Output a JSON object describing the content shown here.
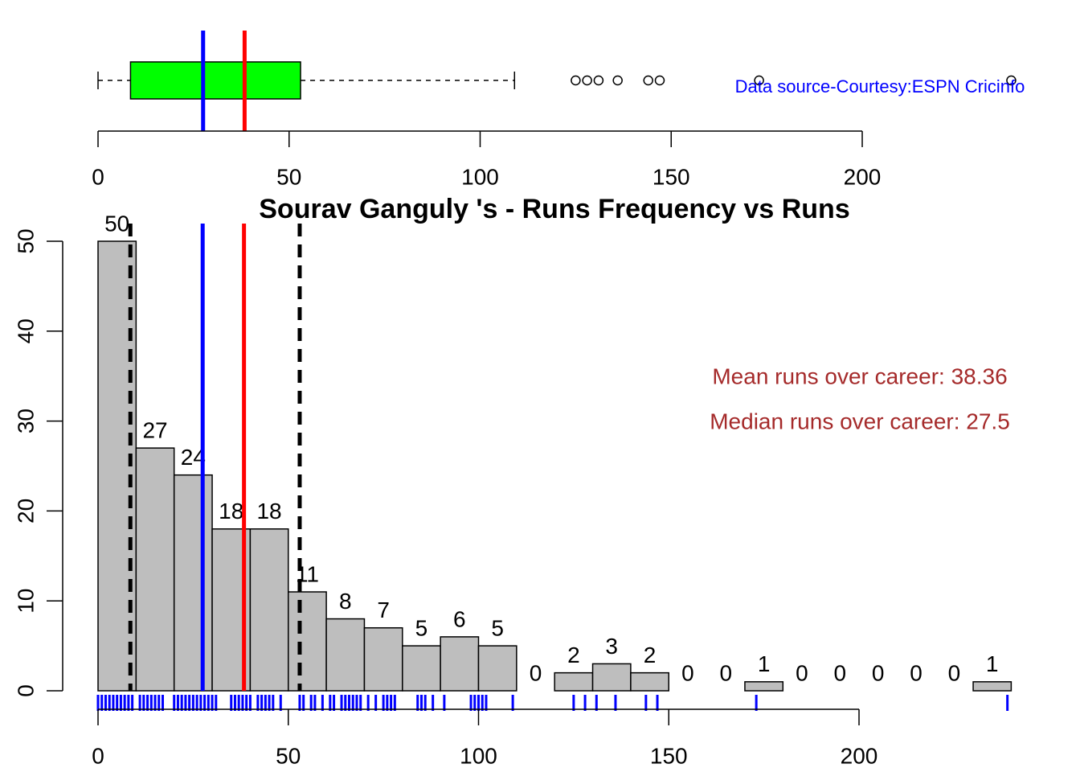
{
  "chart_data": [
    {
      "type": "boxplot",
      "whisker_low": 0,
      "q1": 8.5,
      "median": 27.5,
      "q3": 53,
      "whisker_high": 109,
      "outliers": [
        125,
        128,
        131,
        136,
        144,
        147,
        173,
        239
      ],
      "mean": 38.36,
      "mean_color": "#ff0000",
      "median_color": "#0000ff",
      "color": "#00ff00",
      "xlim": [
        0,
        200
      ],
      "xticks": [
        0,
        50,
        100,
        150,
        200
      ],
      "annotation": "Data source-Courtesy:ESPN Cricinfo",
      "annotation_color": "#0000ff"
    },
    {
      "type": "histogram",
      "title": "Sourav Ganguly 's  - Runs Frequency vs Runs",
      "bins": [
        0,
        10,
        20,
        30,
        40,
        50,
        60,
        70,
        80,
        90,
        100,
        110,
        120,
        130,
        140,
        150,
        160,
        170,
        180,
        190,
        200,
        210,
        220,
        230,
        240
      ],
      "counts": [
        50,
        27,
        24,
        18,
        18,
        11,
        8,
        7,
        5,
        6,
        5,
        0,
        2,
        3,
        2,
        0,
        0,
        1,
        0,
        0,
        0,
        0,
        0,
        1
      ],
      "color": "#bebebe",
      "xlim": [
        0,
        200
      ],
      "xticks": [
        0,
        50,
        100,
        150,
        200
      ],
      "ylim": [
        0,
        50
      ],
      "yticks": [
        0,
        10,
        20,
        30,
        40,
        50
      ],
      "mean": 38.36,
      "median": 27.5,
      "q1": 8.5,
      "q3": 53,
      "mean_color": "#ff0000",
      "median_color": "#0000ff",
      "rug": [
        0,
        1,
        2,
        3,
        4,
        5,
        6,
        7,
        8,
        9,
        11,
        12,
        13,
        14,
        15,
        16,
        17,
        20,
        21,
        22,
        23,
        24,
        25,
        26,
        27,
        28,
        29,
        30,
        31,
        35,
        36,
        37,
        38,
        39,
        40,
        42,
        43,
        44,
        45,
        46,
        48,
        53,
        54,
        56,
        57,
        59,
        61,
        62,
        64,
        65,
        66,
        67,
        68,
        69,
        71,
        73,
        75,
        76,
        77,
        78,
        84,
        85,
        86,
        88,
        91,
        98,
        99,
        100,
        101,
        102,
        109,
        125,
        128,
        131,
        136,
        144,
        147,
        173,
        239
      ],
      "rug_color": "#0000ff",
      "annotations": [
        "Mean runs over career: 38.36",
        "Median runs over career: 27.5"
      ],
      "annotation_color": "#a52a2a"
    }
  ]
}
